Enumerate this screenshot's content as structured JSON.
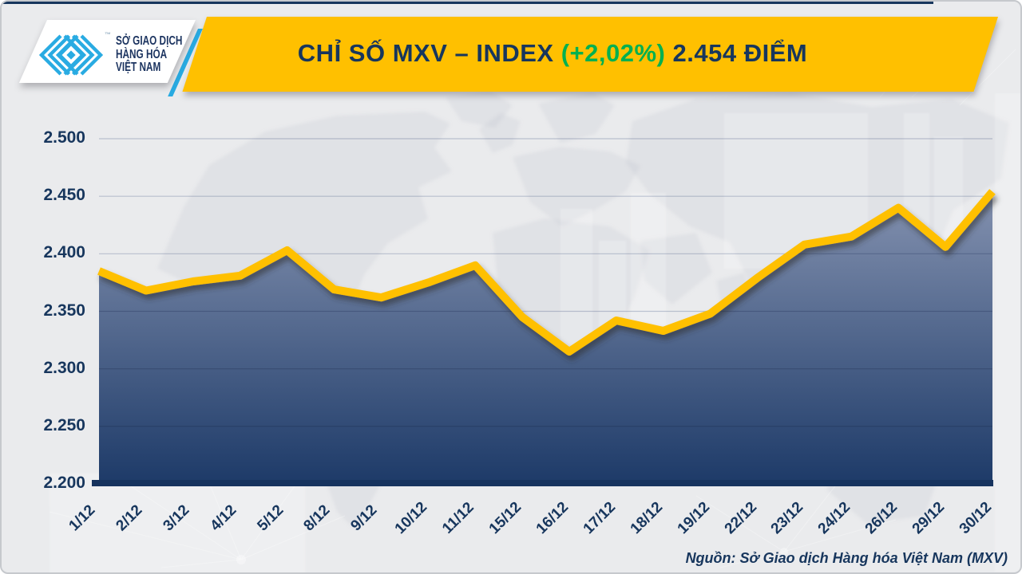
{
  "header": {
    "title_main": "CHỈ SỐ MXV – INDEX",
    "title_change": "(+2,02%)",
    "title_value": "2.454 ĐIỂM",
    "banner_color": "#FFC000",
    "navy_color": "#17365D",
    "green_color": "#00B050"
  },
  "logo": {
    "line1": "SỞ GIAO DỊCH",
    "line2": "HÀNG HÓA",
    "line3": "VIỆT NAM",
    "trademark": "™",
    "icon_color": "#29ABE2"
  },
  "footer": {
    "source": "Nguồn: Sở Giao dịch Hàng hóa Việt Nam (MXV)"
  },
  "chart_data": {
    "type": "area",
    "title": "CHỈ SỐ MXV – INDEX (+2,02%) 2.454 ĐIỂM",
    "categories": [
      "1/12",
      "2/12",
      "3/12",
      "4/12",
      "5/12",
      "8/12",
      "9/12",
      "10/12",
      "11/12",
      "15/12",
      "16/12",
      "17/12",
      "18/12",
      "19/12",
      "22/12",
      "23/12",
      "24/12",
      "26/12",
      "29/12",
      "30/12"
    ],
    "values": [
      2.385,
      2.368,
      2.376,
      2.381,
      2.403,
      2.369,
      2.362,
      2.375,
      2.39,
      2.345,
      2.315,
      2.342,
      2.333,
      2.348,
      2.379,
      2.408,
      2.415,
      2.44,
      2.406,
      2.454
    ],
    "ytick_labels": [
      "2.500",
      "2.450",
      "2.400",
      "2.350",
      "2.300",
      "2.250",
      "2.200"
    ],
    "ytick_values": [
      2.5,
      2.45,
      2.4,
      2.35,
      2.3,
      2.25,
      2.2
    ],
    "ylim": [
      2.2,
      2.5
    ],
    "line_color": "#FFC000",
    "area_top_color": "#97A2BD",
    "area_bottom_color": "#1D3A68",
    "grid": true,
    "legend": false
  }
}
